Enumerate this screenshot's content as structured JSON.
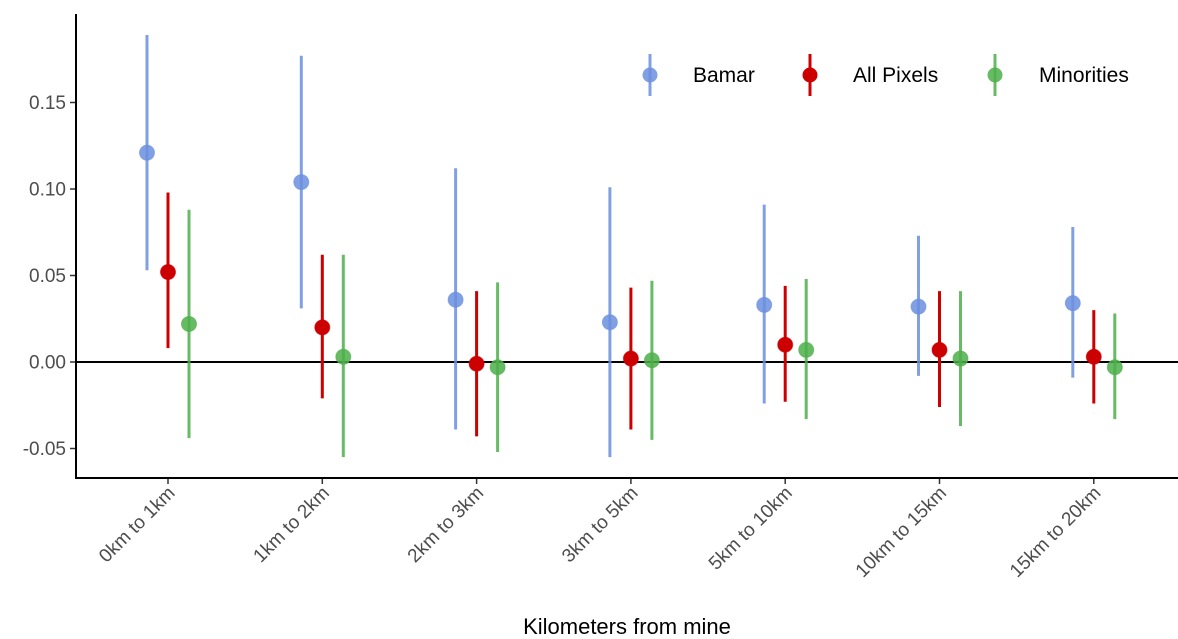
{
  "chart_data": {
    "type": "scatter",
    "subtype": "point-range",
    "title": "",
    "xlabel": "Kilometers from mine",
    "ylabel": "",
    "ylim": [
      -0.067,
      0.2
    ],
    "yticks": [
      -0.05,
      0.0,
      0.05,
      0.1,
      0.15
    ],
    "ytick_labels": [
      "-0.05",
      "0.00",
      "0.05",
      "0.10",
      "0.15"
    ],
    "categories": [
      "0km to 1km",
      "1km to 2km",
      "2km to 3km",
      "3km to 5km",
      "5km to 10km",
      "10km to 15km",
      "15km to 20km"
    ],
    "reference_line_y": 0,
    "grid": false,
    "legend": {
      "position": "top-right",
      "orientation": "horizontal"
    },
    "series": [
      {
        "name": "Bamar",
        "color": "#6b8fdf",
        "values": [
          0.121,
          0.104,
          0.036,
          0.023,
          0.033,
          0.032,
          0.034
        ],
        "lower": [
          0.053,
          0.031,
          -0.039,
          -0.055,
          -0.024,
          -0.008,
          -0.009
        ],
        "upper": [
          0.189,
          0.177,
          0.112,
          0.101,
          0.091,
          0.073,
          0.078
        ]
      },
      {
        "name": "All Pixels",
        "color": "#cc0000",
        "values": [
          0.052,
          0.02,
          -0.001,
          0.002,
          0.01,
          0.007,
          0.003
        ],
        "lower": [
          0.008,
          -0.021,
          -0.043,
          -0.039,
          -0.023,
          -0.026,
          -0.024
        ],
        "upper": [
          0.098,
          0.062,
          0.041,
          0.043,
          0.044,
          0.041,
          0.03
        ]
      },
      {
        "name": "Minorities",
        "color": "#4daf4a",
        "values": [
          0.022,
          0.003,
          -0.003,
          0.001,
          0.007,
          0.002,
          -0.003
        ],
        "lower": [
          -0.044,
          -0.055,
          -0.052,
          -0.045,
          -0.033,
          -0.037,
          -0.033
        ],
        "upper": [
          0.088,
          0.062,
          0.046,
          0.047,
          0.048,
          0.041,
          0.028
        ]
      }
    ]
  }
}
